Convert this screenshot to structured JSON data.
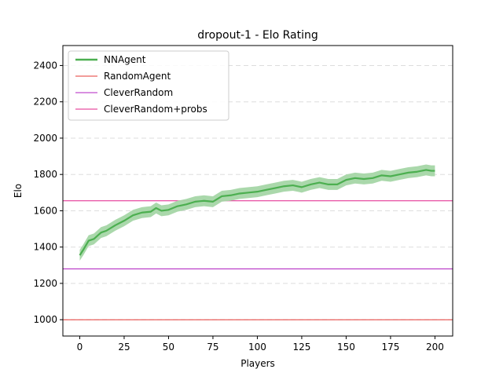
{
  "chart_data": {
    "type": "line",
    "title": "dropout-1 - Elo Rating",
    "xlabel": "Players",
    "ylabel": "Elo",
    "xlim": [
      -9.5,
      210
    ],
    "ylim": [
      910,
      2510
    ],
    "xticks": [
      0,
      25,
      50,
      75,
      100,
      125,
      150,
      175,
      200
    ],
    "yticks": [
      1000,
      1200,
      1400,
      1600,
      1800,
      2000,
      2200,
      2400
    ],
    "grid": "horizontal dashed",
    "legend_position": "upper-left",
    "series": [
      {
        "name": "NNAgent",
        "color": "#4caf50",
        "band_color": "#a5d6a7",
        "x": [
          0,
          2,
          5,
          8,
          12,
          15,
          20,
          25,
          30,
          35,
          40,
          43,
          46,
          50,
          55,
          60,
          65,
          70,
          75,
          80,
          85,
          90,
          95,
          100,
          105,
          110,
          115,
          120,
          125,
          130,
          135,
          140,
          145,
          150,
          155,
          160,
          165,
          170,
          175,
          180,
          185,
          190,
          195,
          198,
          200
        ],
        "values": [
          1355,
          1385,
          1435,
          1445,
          1480,
          1490,
          1520,
          1545,
          1575,
          1590,
          1595,
          1615,
          1600,
          1605,
          1625,
          1635,
          1650,
          1655,
          1650,
          1680,
          1685,
          1695,
          1700,
          1705,
          1715,
          1725,
          1735,
          1740,
          1730,
          1745,
          1755,
          1745,
          1745,
          1770,
          1780,
          1775,
          1780,
          1795,
          1790,
          1800,
          1810,
          1815,
          1825,
          1820,
          1820
        ],
        "band": [
          30,
          30,
          30,
          30,
          30,
          30,
          30,
          30,
          30,
          30,
          30,
          30,
          30,
          30,
          30,
          30,
          30,
          30,
          30,
          30,
          30,
          30,
          30,
          30,
          30,
          30,
          30,
          30,
          30,
          30,
          30,
          30,
          30,
          30,
          30,
          30,
          30,
          30,
          30,
          30,
          30,
          30,
          30,
          30,
          30
        ]
      },
      {
        "name": "RandomAgent",
        "color": "#e53935",
        "value": 1000
      },
      {
        "name": "CleverRandom",
        "color": "#b020c0",
        "value": 1280
      },
      {
        "name": "CleverRandom+probs",
        "color": "#e0208a",
        "value": 1655
      }
    ]
  }
}
